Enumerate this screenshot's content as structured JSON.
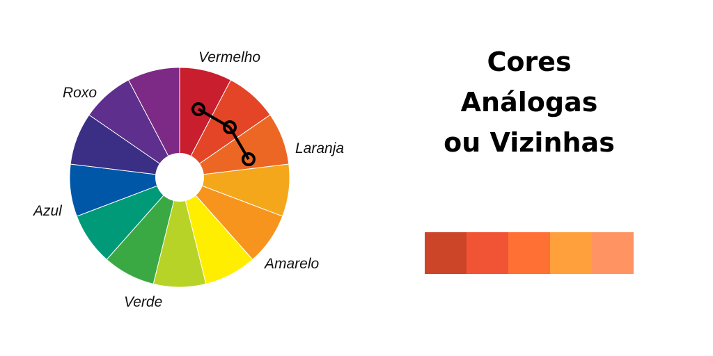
{
  "wheel": {
    "segments": [
      {
        "color": "#C91E2D"
      },
      {
        "color": "#E44527"
      },
      {
        "color": "#EC6724"
      },
      {
        "color": "#F5A71C"
      },
      {
        "color": "#F7941D"
      },
      {
        "color": "#FFEE00"
      },
      {
        "color": "#B8D327"
      },
      {
        "color": "#3BA943"
      },
      {
        "color": "#009A78"
      },
      {
        "color": "#0056A7"
      },
      {
        "color": "#3B2E85"
      },
      {
        "color": "#5E2F8C"
      },
      {
        "color": "#7C2A86"
      }
    ],
    "labels": {
      "vermelho": "Vermelho",
      "laranja": "Laranja",
      "amarelo": "Amarelo",
      "verde": "Verde",
      "azul": "Azul",
      "roxo": "Roxo"
    }
  },
  "title": {
    "line1": "Cores",
    "line2": "Análogas",
    "line3": "ou Vizinhas"
  },
  "palette": {
    "swatches": [
      "#CC4529",
      "#F15335",
      "#FF7034",
      "#FFA03C",
      "#FF9462"
    ]
  }
}
